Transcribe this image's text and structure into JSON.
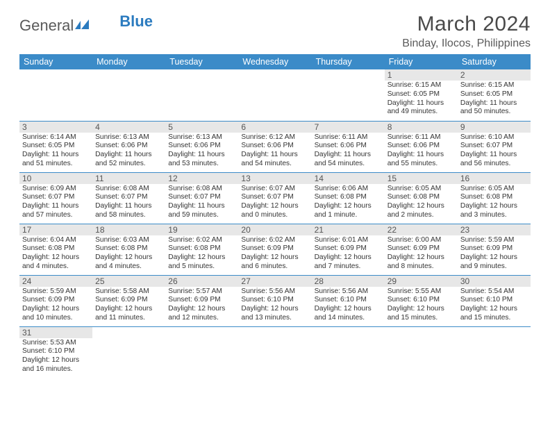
{
  "brand": {
    "part1": "General",
    "part2": "Blue"
  },
  "title": "March 2024",
  "location": "Binday, Ilocos, Philippines",
  "colors": {
    "header_bg": "#3b8bc8",
    "header_text": "#ffffff",
    "daynum_bg": "#e7e7e7",
    "rule": "#3b8bc8",
    "text": "#333333",
    "title_text": "#4a4a4a",
    "brand_gray": "#5a5a5a",
    "brand_blue": "#2b7bbf"
  },
  "typography": {
    "title_fontsize_pt": 22,
    "location_fontsize_pt": 12,
    "dayheader_fontsize_pt": 9,
    "body_fontsize_pt": 7.5
  },
  "day_headers": [
    "Sunday",
    "Monday",
    "Tuesday",
    "Wednesday",
    "Thursday",
    "Friday",
    "Saturday"
  ],
  "weeks": [
    [
      null,
      null,
      null,
      null,
      null,
      {
        "n": "1",
        "sunrise": "Sunrise: 6:15 AM",
        "sunset": "Sunset: 6:05 PM",
        "day1": "Daylight: 11 hours",
        "day2": "and 49 minutes."
      },
      {
        "n": "2",
        "sunrise": "Sunrise: 6:15 AM",
        "sunset": "Sunset: 6:05 PM",
        "day1": "Daylight: 11 hours",
        "day2": "and 50 minutes."
      }
    ],
    [
      {
        "n": "3",
        "sunrise": "Sunrise: 6:14 AM",
        "sunset": "Sunset: 6:05 PM",
        "day1": "Daylight: 11 hours",
        "day2": "and 51 minutes."
      },
      {
        "n": "4",
        "sunrise": "Sunrise: 6:13 AM",
        "sunset": "Sunset: 6:06 PM",
        "day1": "Daylight: 11 hours",
        "day2": "and 52 minutes."
      },
      {
        "n": "5",
        "sunrise": "Sunrise: 6:13 AM",
        "sunset": "Sunset: 6:06 PM",
        "day1": "Daylight: 11 hours",
        "day2": "and 53 minutes."
      },
      {
        "n": "6",
        "sunrise": "Sunrise: 6:12 AM",
        "sunset": "Sunset: 6:06 PM",
        "day1": "Daylight: 11 hours",
        "day2": "and 54 minutes."
      },
      {
        "n": "7",
        "sunrise": "Sunrise: 6:11 AM",
        "sunset": "Sunset: 6:06 PM",
        "day1": "Daylight: 11 hours",
        "day2": "and 54 minutes."
      },
      {
        "n": "8",
        "sunrise": "Sunrise: 6:11 AM",
        "sunset": "Sunset: 6:06 PM",
        "day1": "Daylight: 11 hours",
        "day2": "and 55 minutes."
      },
      {
        "n": "9",
        "sunrise": "Sunrise: 6:10 AM",
        "sunset": "Sunset: 6:07 PM",
        "day1": "Daylight: 11 hours",
        "day2": "and 56 minutes."
      }
    ],
    [
      {
        "n": "10",
        "sunrise": "Sunrise: 6:09 AM",
        "sunset": "Sunset: 6:07 PM",
        "day1": "Daylight: 11 hours",
        "day2": "and 57 minutes."
      },
      {
        "n": "11",
        "sunrise": "Sunrise: 6:08 AM",
        "sunset": "Sunset: 6:07 PM",
        "day1": "Daylight: 11 hours",
        "day2": "and 58 minutes."
      },
      {
        "n": "12",
        "sunrise": "Sunrise: 6:08 AM",
        "sunset": "Sunset: 6:07 PM",
        "day1": "Daylight: 11 hours",
        "day2": "and 59 minutes."
      },
      {
        "n": "13",
        "sunrise": "Sunrise: 6:07 AM",
        "sunset": "Sunset: 6:07 PM",
        "day1": "Daylight: 12 hours",
        "day2": "and 0 minutes."
      },
      {
        "n": "14",
        "sunrise": "Sunrise: 6:06 AM",
        "sunset": "Sunset: 6:08 PM",
        "day1": "Daylight: 12 hours",
        "day2": "and 1 minute."
      },
      {
        "n": "15",
        "sunrise": "Sunrise: 6:05 AM",
        "sunset": "Sunset: 6:08 PM",
        "day1": "Daylight: 12 hours",
        "day2": "and 2 minutes."
      },
      {
        "n": "16",
        "sunrise": "Sunrise: 6:05 AM",
        "sunset": "Sunset: 6:08 PM",
        "day1": "Daylight: 12 hours",
        "day2": "and 3 minutes."
      }
    ],
    [
      {
        "n": "17",
        "sunrise": "Sunrise: 6:04 AM",
        "sunset": "Sunset: 6:08 PM",
        "day1": "Daylight: 12 hours",
        "day2": "and 4 minutes."
      },
      {
        "n": "18",
        "sunrise": "Sunrise: 6:03 AM",
        "sunset": "Sunset: 6:08 PM",
        "day1": "Daylight: 12 hours",
        "day2": "and 4 minutes."
      },
      {
        "n": "19",
        "sunrise": "Sunrise: 6:02 AM",
        "sunset": "Sunset: 6:08 PM",
        "day1": "Daylight: 12 hours",
        "day2": "and 5 minutes."
      },
      {
        "n": "20",
        "sunrise": "Sunrise: 6:02 AM",
        "sunset": "Sunset: 6:09 PM",
        "day1": "Daylight: 12 hours",
        "day2": "and 6 minutes."
      },
      {
        "n": "21",
        "sunrise": "Sunrise: 6:01 AM",
        "sunset": "Sunset: 6:09 PM",
        "day1": "Daylight: 12 hours",
        "day2": "and 7 minutes."
      },
      {
        "n": "22",
        "sunrise": "Sunrise: 6:00 AM",
        "sunset": "Sunset: 6:09 PM",
        "day1": "Daylight: 12 hours",
        "day2": "and 8 minutes."
      },
      {
        "n": "23",
        "sunrise": "Sunrise: 5:59 AM",
        "sunset": "Sunset: 6:09 PM",
        "day1": "Daylight: 12 hours",
        "day2": "and 9 minutes."
      }
    ],
    [
      {
        "n": "24",
        "sunrise": "Sunrise: 5:59 AM",
        "sunset": "Sunset: 6:09 PM",
        "day1": "Daylight: 12 hours",
        "day2": "and 10 minutes."
      },
      {
        "n": "25",
        "sunrise": "Sunrise: 5:58 AM",
        "sunset": "Sunset: 6:09 PM",
        "day1": "Daylight: 12 hours",
        "day2": "and 11 minutes."
      },
      {
        "n": "26",
        "sunrise": "Sunrise: 5:57 AM",
        "sunset": "Sunset: 6:09 PM",
        "day1": "Daylight: 12 hours",
        "day2": "and 12 minutes."
      },
      {
        "n": "27",
        "sunrise": "Sunrise: 5:56 AM",
        "sunset": "Sunset: 6:10 PM",
        "day1": "Daylight: 12 hours",
        "day2": "and 13 minutes."
      },
      {
        "n": "28",
        "sunrise": "Sunrise: 5:56 AM",
        "sunset": "Sunset: 6:10 PM",
        "day1": "Daylight: 12 hours",
        "day2": "and 14 minutes."
      },
      {
        "n": "29",
        "sunrise": "Sunrise: 5:55 AM",
        "sunset": "Sunset: 6:10 PM",
        "day1": "Daylight: 12 hours",
        "day2": "and 15 minutes."
      },
      {
        "n": "30",
        "sunrise": "Sunrise: 5:54 AM",
        "sunset": "Sunset: 6:10 PM",
        "day1": "Daylight: 12 hours",
        "day2": "and 15 minutes."
      }
    ],
    [
      {
        "n": "31",
        "sunrise": "Sunrise: 5:53 AM",
        "sunset": "Sunset: 6:10 PM",
        "day1": "Daylight: 12 hours",
        "day2": "and 16 minutes."
      },
      null,
      null,
      null,
      null,
      null,
      null
    ]
  ]
}
